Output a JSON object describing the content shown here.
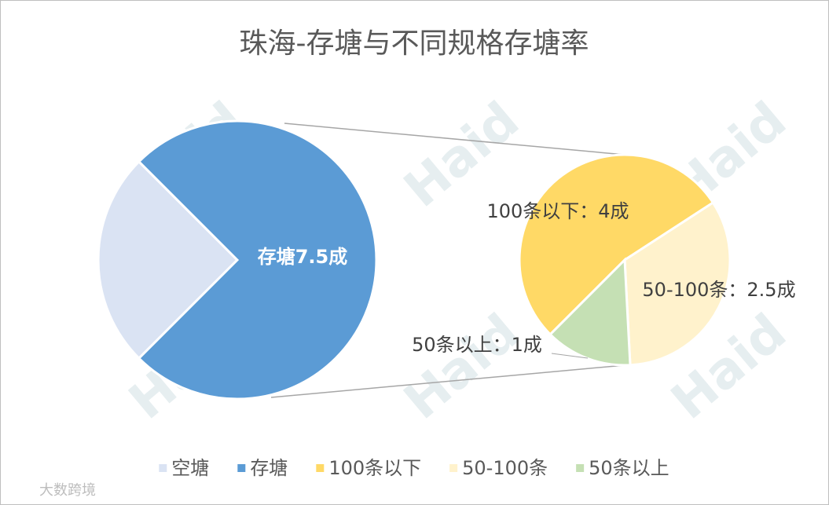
{
  "chart_data": {
    "type": "pie-of-pie",
    "title": "珠海-存塘与不同规格存塘率",
    "categories": [
      "空塘",
      "存塘",
      "100条以下",
      "50-100条",
      "50条以上"
    ],
    "values": [
      2.5,
      7.5,
      4,
      2.5,
      1
    ],
    "value_labels": [
      null,
      "存塘7.5成",
      "100条以下：4成",
      "50-100条：2.5成",
      "50条以上：1成"
    ],
    "colors": [
      "#dae3f3",
      "#5b9bd5",
      "#ffd966",
      "#fff2cc",
      "#c5e0b4"
    ],
    "split_category": 1,
    "legend": "bottom",
    "watermarks": [
      "Haid",
      "大数跨境"
    ]
  }
}
